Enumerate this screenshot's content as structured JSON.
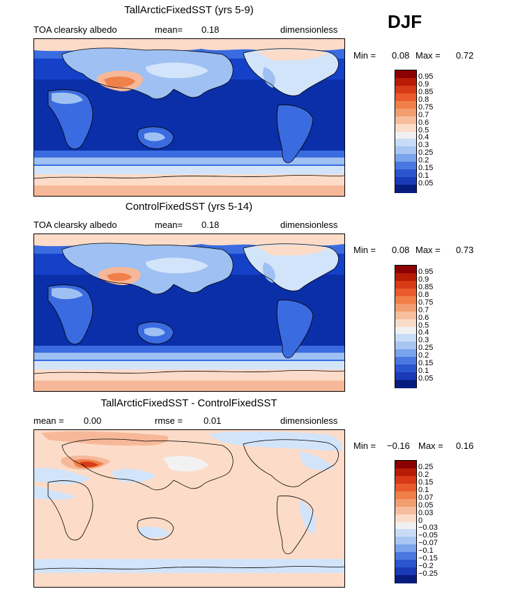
{
  "season": "DJF",
  "colors": {
    "bg": "#ffffff",
    "deep_blue_dark": "#0a2fa8",
    "deep_blue": "#1540c8",
    "mid_blue": "#3a6be0",
    "light_blue": "#9ec0f2",
    "pale_blue": "#d2e4fa",
    "near_white": "#f2f2f2",
    "pale_peach": "#fcdcc8",
    "peach": "#f7b899",
    "orange": "#f0804a",
    "red": "#d83a18"
  },
  "panels": [
    {
      "title": "TallArcticFixedSST (yrs 5-9)",
      "left_label": "TOA clearsky albedo",
      "stat_label": "mean=",
      "stat_value": "0.18",
      "units": "dimensionless",
      "min_label": "Min =",
      "min_value": "0.08",
      "max_label": "Max =",
      "max_value": "0.72",
      "colorbar": {
        "labels": [
          "0.95",
          "0.9",
          "0.85",
          "0.8",
          "0.75",
          "0.7",
          "0.6",
          "0.5",
          "0.4",
          "0.3",
          "0.25",
          "0.2",
          "0.15",
          "0.1",
          "0.05"
        ],
        "colors": [
          "#8b0000",
          "#b81c05",
          "#d83a18",
          "#ea5a2c",
          "#f08048",
          "#f39e70",
          "#f7be9e",
          "#fbdcc8",
          "#f0f0f0",
          "#c8dcf6",
          "#a8c6f2",
          "#7aa4ec",
          "#4a78e0",
          "#2a55d0",
          "#1a3ab8",
          "#081c80"
        ]
      }
    },
    {
      "title": "ControlFixedSST (yrs 5-14)",
      "left_label": "TOA clearsky albedo",
      "stat_label": "mean=",
      "stat_value": "0.18",
      "units": "dimensionless",
      "min_label": "Min =",
      "min_value": "0.08",
      "max_label": "Max =",
      "max_value": "0.73",
      "colorbar": {
        "labels": [
          "0.95",
          "0.9",
          "0.85",
          "0.8",
          "0.75",
          "0.7",
          "0.6",
          "0.5",
          "0.4",
          "0.3",
          "0.25",
          "0.2",
          "0.15",
          "0.1",
          "0.05"
        ],
        "colors": [
          "#8b0000",
          "#b81c05",
          "#d83a18",
          "#ea5a2c",
          "#f08048",
          "#f39e70",
          "#f7be9e",
          "#fbdcc8",
          "#f0f0f0",
          "#c8dcf6",
          "#a8c6f2",
          "#7aa4ec",
          "#4a78e0",
          "#2a55d0",
          "#1a3ab8",
          "#081c80"
        ]
      }
    },
    {
      "title": "TallArcticFixedSST - ControlFixedSST",
      "left_label": "mean =",
      "left_value": "0.00",
      "stat_label": "rmse =",
      "stat_value": "0.01",
      "units": "dimensionless",
      "min_label": "Min =",
      "min_value": "−0.16",
      "max_label": "Max =",
      "max_value": "0.16",
      "colorbar": {
        "labels": [
          "0.25",
          "0.2",
          "0.15",
          "0.1",
          "0.07",
          "0.05",
          "0.03",
          "0",
          "−0.03",
          "−0.05",
          "−0.07",
          "−0.1",
          "−0.15",
          "−0.2",
          "−0.25"
        ],
        "colors": [
          "#8b0000",
          "#b81c05",
          "#d83a18",
          "#ea5a2c",
          "#f08048",
          "#f39e70",
          "#f7be9e",
          "#fbdcc8",
          "#f0f0f0",
          "#c8dcf6",
          "#a8c6f2",
          "#7aa4ec",
          "#4a78e0",
          "#2a55d0",
          "#1a3ab8",
          "#081c80"
        ]
      }
    }
  ]
}
